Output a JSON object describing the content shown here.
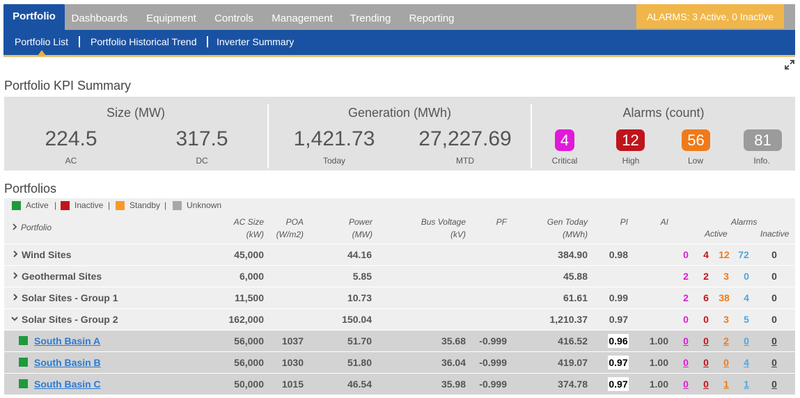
{
  "nav": {
    "tabs": [
      "Portfolio",
      "Dashboards",
      "Equipment",
      "Controls",
      "Management",
      "Trending",
      "Reporting"
    ],
    "alarm_banner": "ALARMS: 3 Active, 0 Inactive",
    "subtabs": [
      "Portfolio List",
      "Portfolio Historical Trend",
      "Inverter Summary"
    ],
    "accent": "#1a52a3",
    "inactive_tab_bg": "#a5a5a5",
    "alarm_banner_color": "#f0b64a"
  },
  "kpi": {
    "title": "Portfolio KPI Summary",
    "size": {
      "heading": "Size (MW)",
      "ac": "224.5",
      "ac_label": "AC",
      "dc": "317.5",
      "dc_label": "DC"
    },
    "generation": {
      "heading": "Generation (MWh)",
      "today": "1,421.73",
      "today_label": "Today",
      "mtd": "27,227.69",
      "mtd_label": "MTD"
    },
    "alarms": {
      "heading": "Alarms (count)",
      "critical": "4",
      "critical_label": "Critical",
      "high": "12",
      "high_label": "High",
      "low": "56",
      "low_label": "Low",
      "info": "81",
      "info_label": "Info.",
      "colors": {
        "critical": "#e01ad8",
        "high": "#c0141c",
        "low": "#f07a1a",
        "info": "#9b9b9b"
      }
    }
  },
  "portfolios": {
    "title": "Portfolios",
    "legend": [
      {
        "label": "Active",
        "color": "#1e9a3c"
      },
      {
        "label": "Inactive",
        "color": "#c0141c"
      },
      {
        "label": "Standby",
        "color": "#f59a2a"
      },
      {
        "label": "Unknown",
        "color": "#a8a8aa"
      }
    ],
    "legend_sep": "|",
    "headers": {
      "portfolio": "Portfolio",
      "ac_size": "AC Size",
      "ac_size_unit": "(kW)",
      "poa": "POA",
      "poa_unit": "(W/m2)",
      "power": "Power",
      "power_unit": "(MW)",
      "bus_voltage": "Bus Voltage",
      "bus_voltage_unit": "(kV)",
      "pf": "PF",
      "gen_today": "Gen Today",
      "gen_today_unit": "(MWh)",
      "pi": "PI",
      "ai": "AI",
      "alarms": "Alarms",
      "active": "Active",
      "inactive": "Inactive"
    },
    "rows": [
      {
        "name": "Wind Sites",
        "ac": "45,000",
        "poa": "",
        "power": "44.16",
        "bus": "",
        "pf": "",
        "gen": "384.90",
        "pi": "0.98",
        "ai": "",
        "crit": "0",
        "high": "4",
        "low": "12",
        "info": "72",
        "inactive": "0"
      },
      {
        "name": "Geothermal Sites",
        "ac": "6,000",
        "poa": "",
        "power": "5.85",
        "bus": "",
        "pf": "",
        "gen": "45.88",
        "pi": "",
        "ai": "",
        "crit": "2",
        "high": "2",
        "low": "3",
        "info": "0",
        "inactive": "0"
      },
      {
        "name": "Solar Sites - Group 1",
        "ac": "11,500",
        "poa": "",
        "power": "10.73",
        "bus": "",
        "pf": "",
        "gen": "61.61",
        "pi": "0.99",
        "ai": "",
        "crit": "2",
        "high": "6",
        "low": "38",
        "info": "4",
        "inactive": "0"
      },
      {
        "name": "Solar Sites - Group 2",
        "ac": "162,000",
        "poa": "",
        "power": "150.04",
        "bus": "",
        "pf": "",
        "gen": "1,210.37",
        "pi": "0.97",
        "ai": "",
        "crit": "0",
        "high": "0",
        "low": "3",
        "info": "5",
        "inactive": "0"
      },
      {
        "name": "South Basin A",
        "ac": "56,000",
        "poa": "1037",
        "power": "51.70",
        "bus": "35.68",
        "pf": "-0.999",
        "gen": "416.52",
        "pi": "0.96",
        "ai": "1.00",
        "crit": "0",
        "high": "0",
        "low": "2",
        "info": "0",
        "inactive": "0"
      },
      {
        "name": "South Basin B",
        "ac": "56,000",
        "poa": "1030",
        "power": "51.80",
        "bus": "36.04",
        "pf": "-0.999",
        "gen": "419.07",
        "pi": "0.97",
        "ai": "1.00",
        "crit": "0",
        "high": "0",
        "low": "0",
        "info": "4",
        "inactive": "0"
      },
      {
        "name": "South Basin C",
        "ac": "50,000",
        "poa": "1015",
        "power": "46.54",
        "bus": "35.98",
        "pf": "-0.999",
        "gen": "374.78",
        "pi": "0.97",
        "ai": "1.00",
        "crit": "0",
        "high": "0",
        "low": "1",
        "info": "1",
        "inactive": "0"
      }
    ]
  }
}
